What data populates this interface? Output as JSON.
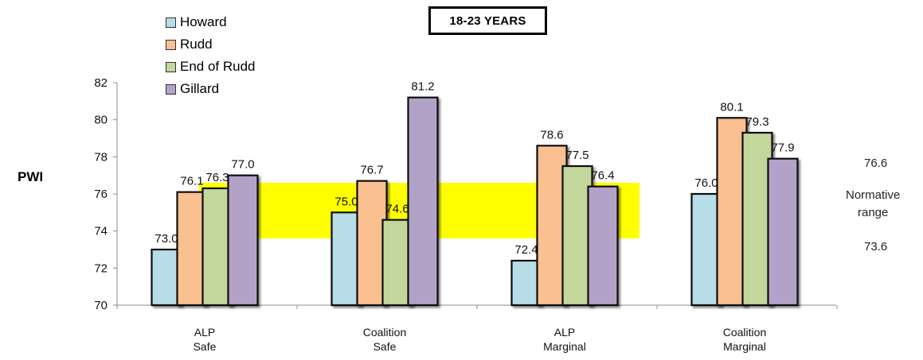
{
  "chart_data": {
    "type": "bar",
    "title": "18-23 YEARS",
    "ylabel": "PWI",
    "ylim": [
      70,
      82
    ],
    "yticks": [
      70,
      72,
      74,
      76,
      78,
      80,
      82
    ],
    "grid": false,
    "legend_position": "top-left",
    "categories": [
      [
        "ALP",
        "Safe"
      ],
      [
        "Coalition",
        "Safe"
      ],
      [
        "ALP",
        "Marginal"
      ],
      [
        "Coalition",
        "Marginal"
      ]
    ],
    "series": [
      {
        "name": "Howard",
        "color": "#b7dde8",
        "values": [
          73.0,
          75.0,
          72.4,
          76.0
        ]
      },
      {
        "name": "Rudd",
        "color": "#fac090",
        "values": [
          76.1,
          76.7,
          78.6,
          80.1
        ]
      },
      {
        "name": "End of Rudd",
        "color": "#c3d69b",
        "values": [
          76.3,
          74.6,
          77.5,
          79.3
        ]
      },
      {
        "name": "Gillard",
        "color": "#b3a2c7",
        "values": [
          77.0,
          81.2,
          76.4,
          77.9
        ]
      }
    ],
    "normative_range": {
      "low": 73.6,
      "high": 76.6,
      "label": [
        "Normative",
        "range"
      ],
      "low_label": "73.6",
      "high_label": "76.6",
      "color": "#ffff00"
    }
  }
}
